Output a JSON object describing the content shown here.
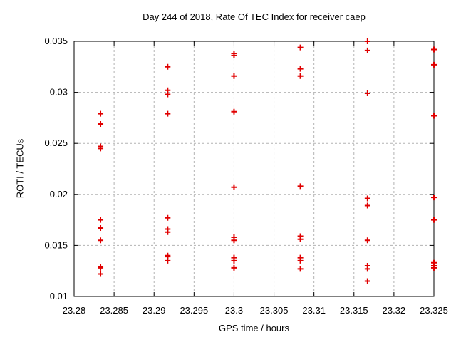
{
  "chart_data": {
    "type": "scatter",
    "title": "Day 244 of 2018, Rate Of TEC Index for receiver caep",
    "xlabel": "GPS time / hours",
    "ylabel": "ROTI / TECUs",
    "xlim": [
      23.28,
      23.325
    ],
    "ylim": [
      0.01,
      0.035
    ],
    "xticks": [
      23.28,
      23.285,
      23.29,
      23.295,
      23.3,
      23.305,
      23.31,
      23.315,
      23.32,
      23.325
    ],
    "xtick_labels": [
      "23.28",
      "23.285",
      "23.29",
      "23.295",
      "23.3",
      "23.305",
      "23.31",
      "23.315",
      "23.32",
      "23.325"
    ],
    "yticks": [
      0.01,
      0.015,
      0.02,
      0.025,
      0.03,
      0.035
    ],
    "ytick_labels": [
      "0.01",
      "0.015",
      "0.02",
      "0.025",
      "0.03",
      "0.035"
    ],
    "grid": true,
    "legend": "none",
    "marker": "plus",
    "marker_color": "#e00000",
    "grid_color": "#b3b3b3",
    "axis_color": "#000000",
    "series": [
      {
        "name": "ROTI",
        "points": [
          [
            23.2833,
            0.0279
          ],
          [
            23.2833,
            0.0269
          ],
          [
            23.2833,
            0.0247
          ],
          [
            23.2833,
            0.0245
          ],
          [
            23.2833,
            0.0175
          ],
          [
            23.2833,
            0.0167
          ],
          [
            23.2833,
            0.0155
          ],
          [
            23.2833,
            0.0129
          ],
          [
            23.2833,
            0.0128
          ],
          [
            23.2833,
            0.0122
          ],
          [
            23.2917,
            0.0325
          ],
          [
            23.2917,
            0.0302
          ],
          [
            23.2917,
            0.0298
          ],
          [
            23.2917,
            0.0279
          ],
          [
            23.2917,
            0.0177
          ],
          [
            23.2917,
            0.0166
          ],
          [
            23.2917,
            0.0163
          ],
          [
            23.2917,
            0.014
          ],
          [
            23.2917,
            0.0139
          ],
          [
            23.2917,
            0.0135
          ],
          [
            23.3,
            0.0338
          ],
          [
            23.3,
            0.0336
          ],
          [
            23.3,
            0.0316
          ],
          [
            23.3,
            0.0281
          ],
          [
            23.3,
            0.0207
          ],
          [
            23.3,
            0.0158
          ],
          [
            23.3,
            0.0155
          ],
          [
            23.3,
            0.0138
          ],
          [
            23.3,
            0.0135
          ],
          [
            23.3,
            0.0128
          ],
          [
            23.3083,
            0.0344
          ],
          [
            23.3083,
            0.0323
          ],
          [
            23.3083,
            0.0316
          ],
          [
            23.3083,
            0.0208
          ],
          [
            23.3083,
            0.0159
          ],
          [
            23.3083,
            0.0156
          ],
          [
            23.3083,
            0.0138
          ],
          [
            23.3083,
            0.0135
          ],
          [
            23.3083,
            0.0127
          ],
          [
            23.3167,
            0.035
          ],
          [
            23.3167,
            0.0341
          ],
          [
            23.3167,
            0.0299
          ],
          [
            23.3167,
            0.0196
          ],
          [
            23.3167,
            0.0189
          ],
          [
            23.3167,
            0.0155
          ],
          [
            23.3167,
            0.013
          ],
          [
            23.3167,
            0.0127
          ],
          [
            23.3167,
            0.0115
          ],
          [
            23.325,
            0.0342
          ],
          [
            23.325,
            0.0327
          ],
          [
            23.325,
            0.0277
          ],
          [
            23.325,
            0.0197
          ],
          [
            23.325,
            0.0175
          ],
          [
            23.325,
            0.0133
          ],
          [
            23.325,
            0.013
          ],
          [
            23.325,
            0.0128
          ]
        ]
      }
    ]
  }
}
